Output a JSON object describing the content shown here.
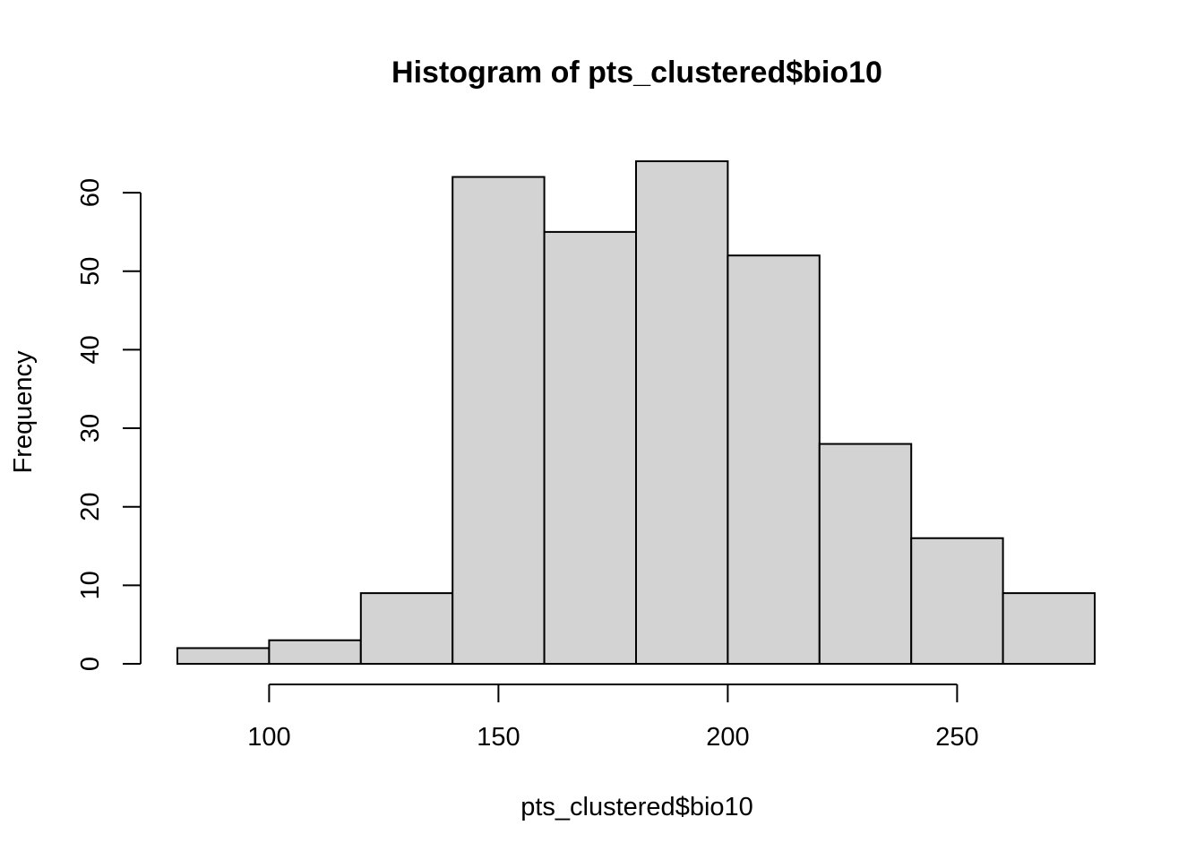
{
  "chart_data": {
    "type": "bar",
    "title": "Histogram of pts_clustered$bio10",
    "xlabel": "pts_clustered$bio10",
    "ylabel": "Frequency",
    "bins": [
      {
        "start": 80,
        "end": 100,
        "count": 2
      },
      {
        "start": 100,
        "end": 120,
        "count": 3
      },
      {
        "start": 120,
        "end": 140,
        "count": 9
      },
      {
        "start": 140,
        "end": 160,
        "count": 62
      },
      {
        "start": 160,
        "end": 180,
        "count": 55
      },
      {
        "start": 180,
        "end": 200,
        "count": 64
      },
      {
        "start": 200,
        "end": 220,
        "count": 52
      },
      {
        "start": 220,
        "end": 240,
        "count": 28
      },
      {
        "start": 240,
        "end": 260,
        "count": 16
      },
      {
        "start": 260,
        "end": 280,
        "count": 9
      }
    ],
    "xlim": [
      80,
      280
    ],
    "ylim": [
      0,
      64
    ],
    "x_ticks": [
      100,
      150,
      200,
      250
    ],
    "y_ticks": [
      0,
      10,
      20,
      30,
      40,
      50,
      60
    ],
    "bar_color": "#d3d3d3",
    "grid": false,
    "legend": "none"
  }
}
